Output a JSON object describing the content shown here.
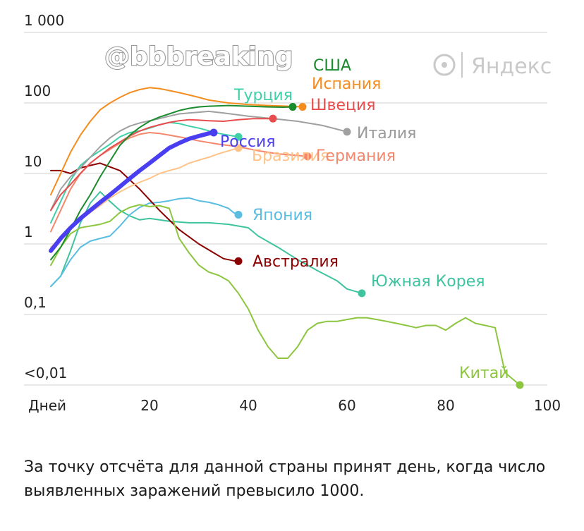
{
  "watermark": "@bbbreaking",
  "brand": {
    "name": "Яндекс",
    "logo_icon": "yandex-logo-icon"
  },
  "caption": "За точку отсчёта для данной страны принят день, когда число выявленных заражений превысило 1000.",
  "chart_data": {
    "type": "line",
    "title": "",
    "xlabel": "Дней",
    "ylabel": "",
    "y_scale": "log",
    "xlim": [
      0,
      100
    ],
    "ylim": [
      0.01,
      1000
    ],
    "grid": true,
    "x_ticks": [
      {
        "value": 0,
        "label": "Дней"
      },
      {
        "value": 20,
        "label": "20"
      },
      {
        "value": 40,
        "label": "40"
      },
      {
        "value": 60,
        "label": "60"
      },
      {
        "value": 80,
        "label": "80"
      },
      {
        "value": 100,
        "label": "100"
      }
    ],
    "y_ticks": [
      {
        "value": 1000,
        "label": "1 000"
      },
      {
        "value": 100,
        "label": "100"
      },
      {
        "value": 10,
        "label": "10"
      },
      {
        "value": 1,
        "label": "1"
      },
      {
        "value": 0.1,
        "label": "0,1"
      },
      {
        "value": 0.01,
        "label": "<0,01"
      }
    ],
    "series": [
      {
        "name": "Южная Корея",
        "color": "#3fc4a0",
        "width": 2,
        "x": [
          0,
          2,
          4,
          6,
          8,
          10,
          12,
          14,
          16,
          18,
          20,
          24,
          28,
          32,
          36,
          40,
          42,
          46,
          50,
          54,
          58,
          60,
          62,
          63
        ],
        "y": [
          0.25,
          0.35,
          0.8,
          2.0,
          3.8,
          5.5,
          4.0,
          3.0,
          2.5,
          2.2,
          2.3,
          2.1,
          2.0,
          2.0,
          1.9,
          1.7,
          1.3,
          0.9,
          0.6,
          0.42,
          0.3,
          0.23,
          0.21,
          0.2
        ]
      },
      {
        "name": "Япония",
        "color": "#5bbde0",
        "width": 2,
        "x": [
          0,
          2,
          4,
          6,
          8,
          10,
          12,
          14,
          16,
          18,
          20,
          22,
          24,
          26,
          28,
          30,
          32,
          34,
          36,
          37,
          38
        ],
        "y": [
          0.25,
          0.35,
          0.6,
          0.9,
          1.1,
          1.2,
          1.3,
          1.8,
          2.6,
          3.3,
          3.8,
          3.9,
          4.1,
          4.4,
          4.5,
          4.1,
          3.9,
          3.6,
          3.2,
          2.8,
          2.6
        ]
      },
      {
        "name": "Австралия",
        "color": "#8b0000",
        "width": 2,
        "x": [
          0,
          2,
          4,
          6,
          8,
          10,
          14,
          18,
          22,
          26,
          30,
          33,
          35,
          37,
          38
        ],
        "y": [
          11,
          11,
          10,
          12,
          13,
          14,
          11,
          6,
          3,
          1.6,
          1.0,
          0.75,
          0.62,
          0.58,
          0.57
        ]
      },
      {
        "name": "Китай",
        "color": "#8cc63f",
        "width": 2,
        "x": [
          0,
          2,
          4,
          6,
          8,
          10,
          12,
          14,
          16,
          18,
          20,
          22,
          24,
          26,
          28,
          30,
          32,
          34,
          36,
          38,
          40,
          42,
          44,
          46,
          48,
          50,
          52,
          54,
          56,
          58,
          60,
          62,
          64,
          66,
          68,
          70,
          72,
          74,
          76,
          78,
          80,
          82,
          84,
          86,
          88,
          90,
          92,
          95
        ],
        "y": [
          0.5,
          0.9,
          1.4,
          1.7,
          1.8,
          1.9,
          2.1,
          2.8,
          3.3,
          3.6,
          3.4,
          3.5,
          3.2,
          1.2,
          0.75,
          0.5,
          0.4,
          0.36,
          0.3,
          0.2,
          0.12,
          0.06,
          0.035,
          0.024,
          0.024,
          0.035,
          0.06,
          0.075,
          0.08,
          0.08,
          0.085,
          0.09,
          0.09,
          0.085,
          0.08,
          0.075,
          0.07,
          0.065,
          0.07,
          0.07,
          0.06,
          0.075,
          0.09,
          0.075,
          0.07,
          0.065,
          0.015,
          0.01
        ]
      },
      {
        "name": "Турция",
        "color": "#3fd0a8",
        "width": 2,
        "x": [
          0,
          2,
          4,
          6,
          8,
          10,
          12,
          14,
          16,
          18,
          20,
          22,
          24,
          26,
          28,
          30,
          34,
          38
        ],
        "y": [
          2.0,
          4.0,
          8.0,
          13,
          17,
          21,
          26,
          33,
          38,
          40,
          44,
          49,
          53,
          51,
          47,
          44,
          37,
          33
        ]
      },
      {
        "name": "Бразилия",
        "color": "#ffc38a",
        "width": 2,
        "x": [
          0,
          2,
          4,
          6,
          8,
          10,
          12,
          14,
          16,
          18,
          20,
          22,
          24,
          26,
          28,
          30,
          32,
          34,
          36,
          38
        ],
        "y": [
          0.9,
          1.2,
          1.6,
          2.2,
          2.8,
          3.5,
          4.5,
          5.5,
          6.5,
          7.5,
          8.5,
          10,
          11,
          12,
          14,
          15.5,
          17,
          19,
          21,
          23
        ]
      },
      {
        "name": "Германия",
        "color": "#f4876c",
        "width": 2,
        "x": [
          0,
          2,
          4,
          6,
          8,
          10,
          12,
          14,
          16,
          18,
          20,
          22,
          24,
          26,
          28,
          30,
          34,
          38,
          42,
          46,
          50,
          52
        ],
        "y": [
          1.5,
          3,
          6,
          10,
          14,
          18,
          22,
          27,
          32,
          36,
          38,
          37,
          35,
          33,
          31,
          29,
          26,
          24,
          21,
          19,
          18,
          17.5
        ]
      },
      {
        "name": "Италия",
        "color": "#a0a0a0",
        "width": 2,
        "x": [
          0,
          2,
          4,
          6,
          8,
          10,
          12,
          14,
          16,
          18,
          20,
          22,
          24,
          26,
          28,
          30,
          32,
          35,
          40,
          45,
          50,
          55,
          60
        ],
        "y": [
          3,
          6,
          9,
          12,
          17,
          24,
          32,
          40,
          47,
          52,
          56,
          60,
          65,
          70,
          72,
          74,
          76,
          72,
          65,
          60,
          55,
          48,
          39
        ]
      },
      {
        "name": "Швеция",
        "color": "#e84c4c",
        "width": 2,
        "x": [
          0,
          2,
          4,
          6,
          8,
          10,
          12,
          14,
          16,
          18,
          20,
          22,
          24,
          26,
          28,
          30,
          32,
          35,
          38,
          41,
          44,
          45
        ],
        "y": [
          3,
          5,
          7,
          10,
          14,
          18,
          23,
          28,
          34,
          40,
          45,
          49,
          53,
          56,
          58,
          57,
          56,
          55,
          58,
          60,
          60,
          60
        ]
      },
      {
        "name": "Испания",
        "color": "#f48c1e",
        "width": 2,
        "x": [
          0,
          2,
          4,
          6,
          8,
          10,
          12,
          14,
          16,
          18,
          20,
          22,
          24,
          26,
          28,
          30,
          32,
          36,
          40,
          44,
          48,
          51
        ],
        "y": [
          5,
          10,
          20,
          35,
          55,
          80,
          100,
          120,
          140,
          155,
          165,
          160,
          150,
          140,
          130,
          120,
          110,
          100,
          95,
          92,
          90,
          88
        ]
      },
      {
        "name": "США",
        "color": "#1a8c2e",
        "width": 2,
        "x": [
          0,
          2,
          4,
          6,
          8,
          10,
          12,
          14,
          16,
          18,
          20,
          22,
          24,
          26,
          28,
          30,
          32,
          36,
          40,
          44,
          47,
          49
        ],
        "y": [
          0.6,
          0.9,
          1.6,
          3,
          5,
          9,
          15,
          25,
          35,
          45,
          55,
          63,
          70,
          78,
          84,
          88,
          90,
          92,
          90,
          88,
          87,
          88
        ]
      },
      {
        "name": "Россия",
        "color": "#4a3ff0",
        "width": 6,
        "x": [
          0,
          2,
          4,
          6,
          8,
          10,
          12,
          14,
          16,
          18,
          20,
          22,
          24,
          26,
          28,
          30,
          32,
          33
        ],
        "y": [
          0.8,
          1.2,
          1.7,
          2.3,
          3.0,
          3.9,
          5.0,
          6.5,
          8.5,
          11,
          14,
          18,
          23,
          27,
          31,
          34,
          37,
          38
        ]
      }
    ],
    "end_markers": [
      {
        "series": "Испания",
        "x": 51,
        "y": 88,
        "color": "#f48c1e"
      },
      {
        "series": "США",
        "x": 49,
        "y": 88,
        "color": "#1a8c2e"
      },
      {
        "series": "Швеция",
        "x": 45,
        "y": 60,
        "color": "#e84c4c"
      },
      {
        "series": "Италия",
        "x": 60,
        "y": 39,
        "color": "#a0a0a0"
      },
      {
        "series": "Германия",
        "x": 52,
        "y": 17.5,
        "color": "#f4876c"
      },
      {
        "series": "Турция",
        "x": 38,
        "y": 33,
        "color": "#3fd0a8"
      },
      {
        "series": "Бразилия",
        "x": 38,
        "y": 23,
        "color": "#ffc38a"
      },
      {
        "series": "Япония",
        "x": 38,
        "y": 2.6,
        "color": "#5bbde0"
      },
      {
        "series": "Австралия",
        "x": 38,
        "y": 0.57,
        "color": "#8b0000"
      },
      {
        "series": "Южная Корея",
        "x": 63,
        "y": 0.2,
        "color": "#3fc4a0"
      },
      {
        "series": "Китай",
        "x": 95,
        "y": 0.01,
        "color": "#8cc63f"
      },
      {
        "series": "Россия",
        "x": 33,
        "y": 38,
        "color": "#4a3ff0"
      }
    ],
    "labels": [
      {
        "text": "США",
        "color": "#1a8c2e"
      },
      {
        "text": "Испания",
        "color": "#f48c1e"
      },
      {
        "text": "Турция",
        "color": "#3fd0a8"
      },
      {
        "text": "Швеция",
        "color": "#e84c4c"
      },
      {
        "text": "Италия",
        "color": "#9a9a9a"
      },
      {
        "text": "Россия",
        "color": "#4a3ff0"
      },
      {
        "text": "Бразилия",
        "color": "#ffc38a"
      },
      {
        "text": "Германия",
        "color": "#f4876c"
      },
      {
        "text": "Япония",
        "color": "#5bbde0"
      },
      {
        "text": "Австралия",
        "color": "#8b0000"
      },
      {
        "text": "Южная Корея",
        "color": "#3fc4a0"
      },
      {
        "text": "Китай",
        "color": "#8cc63f"
      }
    ]
  }
}
